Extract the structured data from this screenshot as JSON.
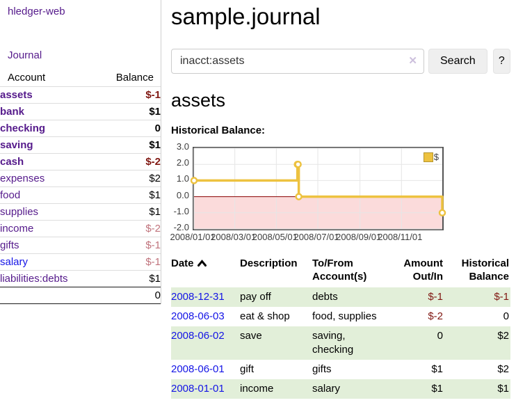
{
  "app": {
    "brand": "hledger-web"
  },
  "nav": {
    "journal": "Journal"
  },
  "sidebar": {
    "header": {
      "account": "Account",
      "balance": "Balance"
    },
    "accounts": [
      {
        "name": "assets",
        "balance": "$-1"
      },
      {
        "name": "bank",
        "balance": "$1"
      },
      {
        "name": "checking",
        "balance": "0"
      },
      {
        "name": "saving",
        "balance": "$1"
      },
      {
        "name": "cash",
        "balance": "$-2"
      },
      {
        "name": "expenses",
        "balance": "$2"
      },
      {
        "name": "food",
        "balance": "$1"
      },
      {
        "name": "supplies",
        "balance": "$1"
      },
      {
        "name": "income",
        "balance": "$-2"
      },
      {
        "name": "gifts",
        "balance": "$-1"
      },
      {
        "name": "salary",
        "balance": "$-1"
      },
      {
        "name": "liabilities:debts",
        "balance": "$1"
      }
    ],
    "total": "0"
  },
  "main": {
    "title": "sample.journal",
    "search": {
      "value": "inacct:assets",
      "clear_icon": "✕",
      "search_button": "Search",
      "help_button": "?"
    },
    "account_heading": "assets",
    "section_label": "Historical Balance:"
  },
  "chart_data": {
    "type": "line",
    "title": "Historical Balance",
    "step": true,
    "x_range": [
      "2008-01-01",
      "2008-12-31"
    ],
    "ylim": [
      -2.0,
      3.0
    ],
    "y_ticks": [
      "3.0",
      "2.0",
      "1.0",
      "0.0",
      "-1.0",
      "-2.0"
    ],
    "x_ticks": [
      "2008/01/01",
      "2008/03/01",
      "2008/05/01",
      "2008/07/01",
      "2008/09/01",
      "2008/11/01"
    ],
    "series": [
      {
        "name": "$",
        "color": "#EDC240",
        "points": [
          [
            "2008-01-01",
            1
          ],
          [
            "2008-06-01",
            2
          ],
          [
            "2008-06-02",
            2
          ],
          [
            "2008-06-03",
            0
          ],
          [
            "2008-12-31",
            -1
          ]
        ]
      }
    ],
    "legend": {
      "label": "$",
      "position": "top-right"
    },
    "grid": true,
    "grid_color": "#e6e6e6",
    "border_color": "#545454",
    "zero_line_color": "#8b0000",
    "negative_region_color": "#fbdbdb"
  },
  "register": {
    "headers": {
      "date": "Date",
      "description": "Description",
      "accounts": "To/From Account(s)",
      "amount": "Amount Out/In",
      "balance": "Historical Balance"
    },
    "rows": [
      {
        "date": "2008-12-31",
        "description": "pay off",
        "accounts": "debts",
        "amount": "$-1",
        "balance": "$-1"
      },
      {
        "date": "2008-06-03",
        "description": "eat & shop",
        "accounts": "food, supplies",
        "amount": "$-2",
        "balance": "0"
      },
      {
        "date": "2008-06-02",
        "description": "save",
        "accounts": "saving, checking",
        "amount": "0",
        "balance": "$2"
      },
      {
        "date": "2008-06-01",
        "description": "gift",
        "accounts": "gifts",
        "amount": "$1",
        "balance": "$2"
      },
      {
        "date": "2008-01-01",
        "description": "income",
        "accounts": "salary",
        "amount": "$1",
        "balance": "$1"
      }
    ]
  },
  "colors": {
    "link_purple": "#551a8b",
    "link_blue": "#1414e6",
    "negative_dark": "#801812",
    "negative_light": "#c0737c",
    "row_green": "#e2efd9",
    "series_yellow": "#EDC240"
  }
}
